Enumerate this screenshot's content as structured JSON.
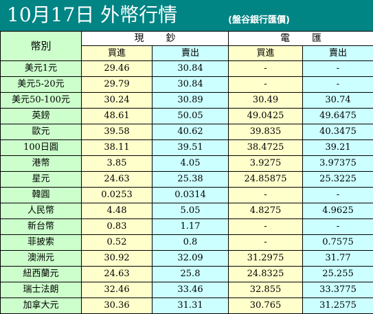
{
  "header": {
    "title": "10月17日 外幣行情",
    "subtitle": "(盤谷銀行匯價)"
  },
  "table": {
    "corner_label": "幣別",
    "group_cash": "現鈔",
    "group_spot": "電匯",
    "cash_buy": "買進",
    "cash_sell": "賣出",
    "spot_buy": "買進",
    "spot_sell": "賣出",
    "rows": [
      {
        "currency": "美元1元",
        "cash_buy": "29.46",
        "cash_sell": "30.84",
        "spot_buy": "-",
        "spot_sell": "-"
      },
      {
        "currency": "美元5-20元",
        "cash_buy": "29.79",
        "cash_sell": "30.84",
        "spot_buy": "-",
        "spot_sell": "-"
      },
      {
        "currency": "美元50-100元",
        "cash_buy": "30.24",
        "cash_sell": "30.89",
        "spot_buy": "30.49",
        "spot_sell": "30.74"
      },
      {
        "currency": "英鎊",
        "cash_buy": "48.61",
        "cash_sell": "50.05",
        "spot_buy": "49.0425",
        "spot_sell": "49.6475"
      },
      {
        "currency": "歐元",
        "cash_buy": "39.58",
        "cash_sell": "40.62",
        "spot_buy": "39.835",
        "spot_sell": "40.3475"
      },
      {
        "currency": "100日圓",
        "cash_buy": "38.11",
        "cash_sell": "39.51",
        "spot_buy": "38.4725",
        "spot_sell": "39.21"
      },
      {
        "currency": "港幣",
        "cash_buy": "3.85",
        "cash_sell": "4.05",
        "spot_buy": "3.9275",
        "spot_sell": "3.97375"
      },
      {
        "currency": "星元",
        "cash_buy": "24.63",
        "cash_sell": "25.38",
        "spot_buy": "24.85875",
        "spot_sell": "25.3225"
      },
      {
        "currency": "韓圓",
        "cash_buy": "0.0253",
        "cash_sell": "0.0314",
        "spot_buy": "-",
        "spot_sell": "-"
      },
      {
        "currency": "人民幣",
        "cash_buy": "4.48",
        "cash_sell": "5.05",
        "spot_buy": "4.8275",
        "spot_sell": "4.9625"
      },
      {
        "currency": "新台幣",
        "cash_buy": "0.83",
        "cash_sell": "1.17",
        "spot_buy": "-",
        "spot_sell": "-"
      },
      {
        "currency": "菲披索",
        "cash_buy": "0.52",
        "cash_sell": "0.8",
        "spot_buy": "-",
        "spot_sell": "0.7575"
      },
      {
        "currency": "澳洲元",
        "cash_buy": "30.92",
        "cash_sell": "32.09",
        "spot_buy": "31.2975",
        "spot_sell": "31.77"
      },
      {
        "currency": "紐西蘭元",
        "cash_buy": "24.63",
        "cash_sell": "25.8",
        "spot_buy": "24.8325",
        "spot_sell": "25.255"
      },
      {
        "currency": "瑞士法朗",
        "cash_buy": "32.46",
        "cash_sell": "33.46",
        "spot_buy": "32.855",
        "spot_sell": "33.3775"
      },
      {
        "currency": "加拿大元",
        "cash_buy": "30.36",
        "cash_sell": "31.31",
        "spot_buy": "30.765",
        "spot_sell": "31.2575"
      }
    ]
  },
  "colors": {
    "title_bg": "#008484",
    "currency_bg": "#ccffcc",
    "buy_bg": "#ffffcc",
    "sell_bg": "#ccffff"
  }
}
